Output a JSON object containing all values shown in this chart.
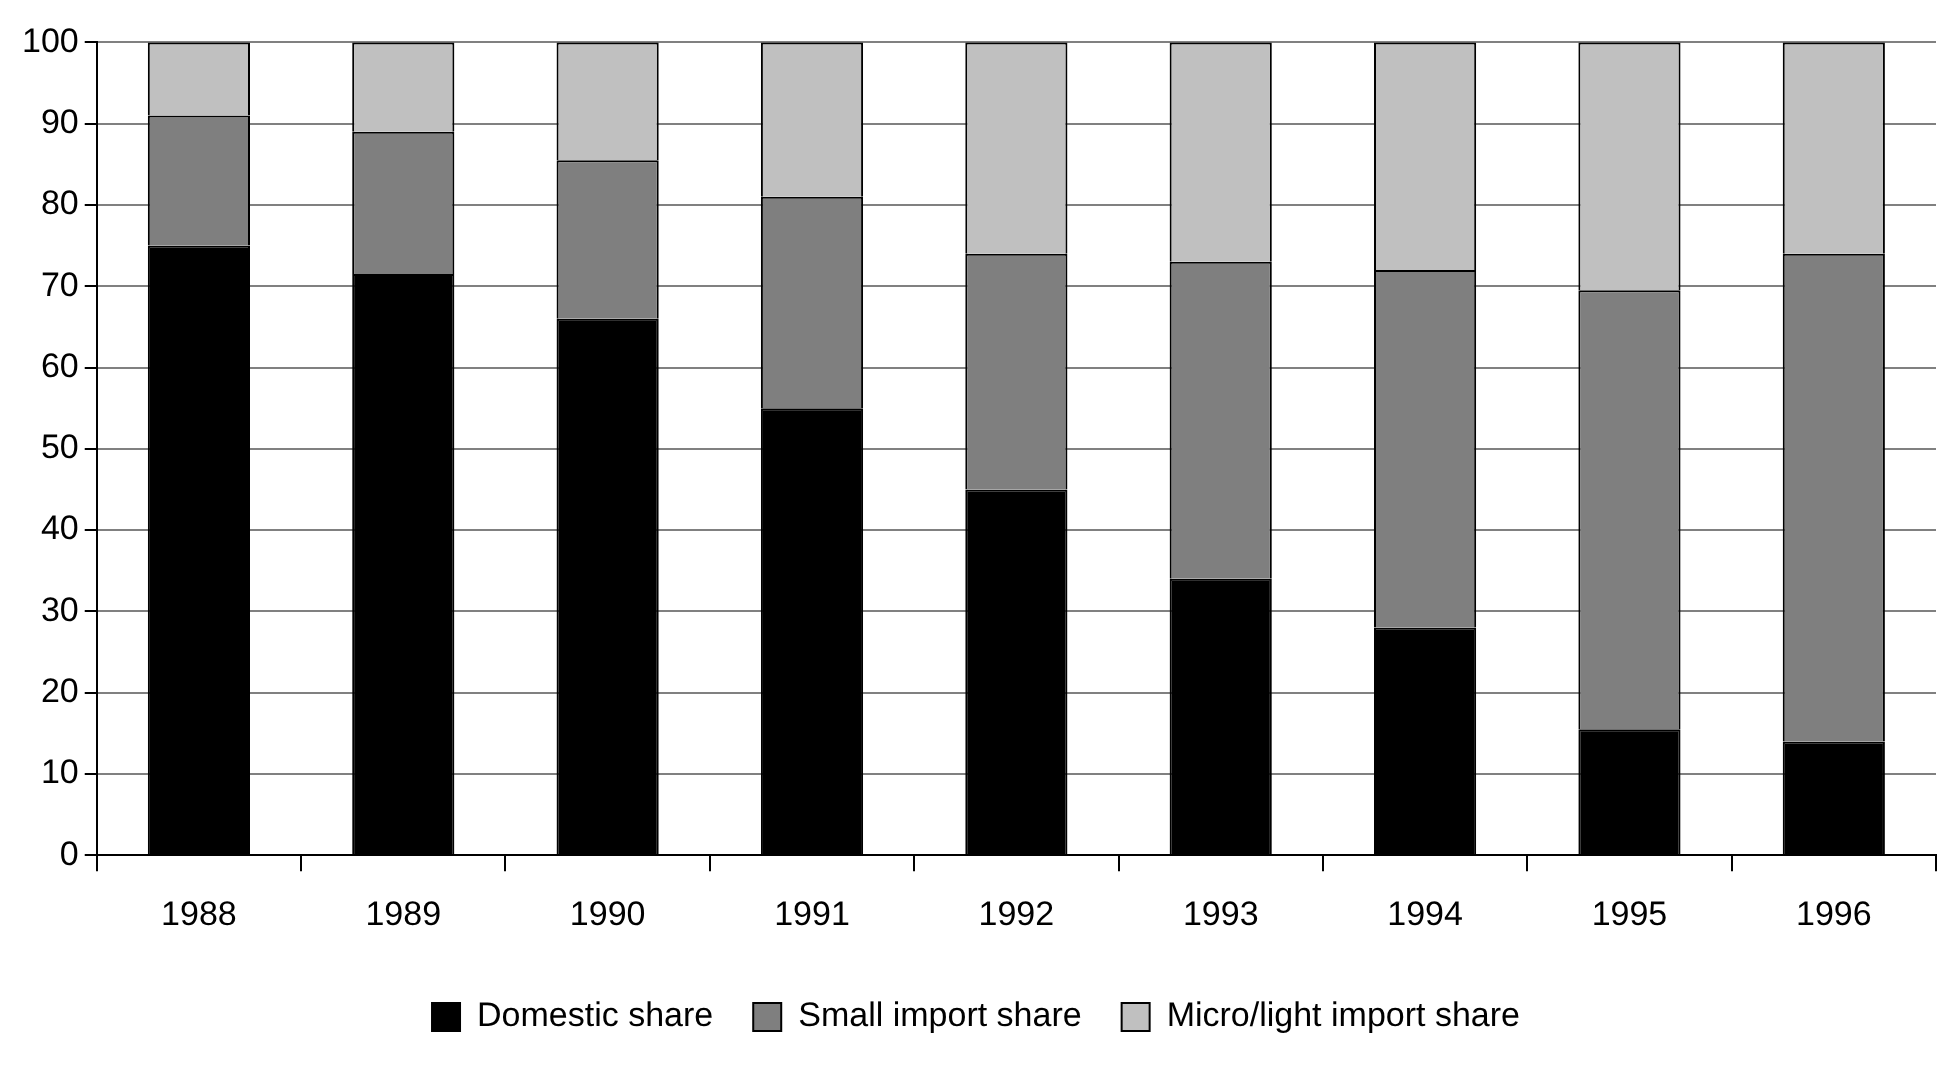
{
  "chart_data": {
    "type": "bar",
    "stacked": true,
    "categories": [
      "1988",
      "1989",
      "1990",
      "1991",
      "1992",
      "1993",
      "1994",
      "1995",
      "1996"
    ],
    "series": [
      {
        "name": "Domestic share",
        "color": "#000000",
        "values": [
          75,
          71.5,
          66,
          55,
          45,
          34,
          28,
          15.5,
          14
        ]
      },
      {
        "name": "Small import share",
        "color": "#7f7f7f",
        "values": [
          16,
          17.5,
          19.5,
          26,
          29,
          39,
          44,
          54,
          60
        ]
      },
      {
        "name": "Micro/light import share",
        "color": "#c0c0c0",
        "values": [
          9,
          11,
          14.5,
          19,
          26,
          27,
          28,
          30.5,
          26
        ]
      }
    ],
    "ylim": [
      0,
      100
    ],
    "yticks": [
      0,
      10,
      20,
      30,
      40,
      50,
      60,
      70,
      80,
      90,
      100
    ],
    "grid": "y",
    "legend": "bottom"
  }
}
